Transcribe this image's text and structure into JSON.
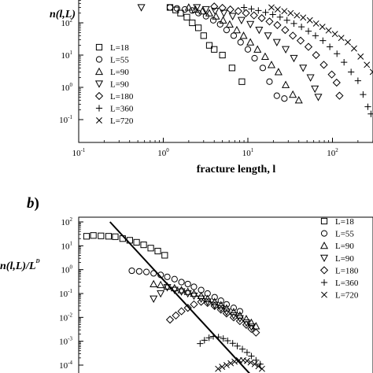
{
  "chart_data": [
    {
      "type": "scatter",
      "title": "",
      "ylabel": "n(l,L)",
      "xlabel": "fracture length, l",
      "xscale": "log",
      "yscale": "log",
      "xlim": [
        0.1,
        500
      ],
      "ylim": [
        0.03,
        600
      ],
      "x_ticks": [
        "10",
        "10",
        "10",
        "10"
      ],
      "x_tick_exponents": [
        "-1",
        "0",
        "1",
        "2"
      ],
      "y_ticks": [
        "10",
        "10",
        "10",
        "10"
      ],
      "y_tick_exponents": [
        "-1",
        "0",
        "1",
        "2"
      ],
      "legend_position": "left",
      "series": [
        {
          "name": "L=18",
          "marker": "square",
          "points": [
            [
              1.2,
              300
            ],
            [
              1.4,
              250
            ],
            [
              1.6,
              200
            ],
            [
              1.9,
              150
            ],
            [
              2.2,
              100
            ],
            [
              2.6,
              70
            ],
            [
              3.0,
              40
            ],
            [
              3.5,
              20
            ],
            [
              4.0,
              15
            ],
            [
              5.0,
              10
            ],
            [
              6.5,
              4
            ],
            [
              8.5,
              1.5
            ]
          ]
        },
        {
          "name": "L=55",
          "marker": "circle",
          "points": [
            [
              1.2,
              300
            ],
            [
              1.45,
              280
            ],
            [
              1.8,
              260
            ],
            [
              2.2,
              240
            ],
            [
              2.6,
              200
            ],
            [
              3.2,
              160
            ],
            [
              3.9,
              120
            ],
            [
              4.7,
              90
            ],
            [
              5.6,
              60
            ],
            [
              6.8,
              40
            ],
            [
              8.2,
              25
            ],
            [
              10,
              15
            ],
            [
              12,
              8
            ],
            [
              15,
              4
            ],
            [
              18,
              1.5
            ],
            [
              22,
              0.55
            ],
            [
              27,
              0.45
            ]
          ]
        },
        {
          "name": "L=90",
          "marker": "triangle-up",
          "points": [
            [
              2.0,
              300
            ],
            [
              2.4,
              260
            ],
            [
              2.9,
              230
            ],
            [
              3.5,
              200
            ],
            [
              4.2,
              160
            ],
            [
              5.1,
              120
            ],
            [
              6.1,
              90
            ],
            [
              7.4,
              60
            ],
            [
              8.9,
              40
            ],
            [
              10.7,
              25
            ],
            [
              13,
              15
            ],
            [
              16,
              9
            ],
            [
              19,
              5
            ],
            [
              23,
              3
            ],
            [
              28,
              1.2
            ],
            [
              34,
              0.6
            ],
            [
              40,
              0.4
            ]
          ]
        },
        {
          "name": "L=90",
          "marker": "triangle-down",
          "points": [
            [
              0.55,
              300
            ],
            [
              2.5,
              300
            ],
            [
              3.2,
              260
            ],
            [
              4.1,
              230
            ],
            [
              5.2,
              200
            ],
            [
              6.6,
              160
            ],
            [
              8.4,
              120
            ],
            [
              10.7,
              90
            ],
            [
              13.6,
              60
            ],
            [
              17.3,
              40
            ],
            [
              22,
              25
            ],
            [
              28,
              15
            ],
            [
              35,
              8
            ],
            [
              45,
              4
            ],
            [
              55,
              2
            ],
            [
              62,
              0.9
            ],
            [
              68,
              0.5
            ]
          ]
        },
        {
          "name": "L=180",
          "marker": "diamond",
          "points": [
            [
              4.0,
              320
            ],
            [
              5.0,
              290
            ],
            [
              6.2,
              260
            ],
            [
              7.7,
              230
            ],
            [
              9.5,
              200
            ],
            [
              11.8,
              170
            ],
            [
              14.6,
              140
            ],
            [
              18,
              110
            ],
            [
              22.3,
              85
            ],
            [
              27.6,
              60
            ],
            [
              34,
              40
            ],
            [
              42,
              28
            ],
            [
              52,
              18
            ],
            [
              64,
              10
            ],
            [
              79,
              5
            ],
            [
              98,
              2.5
            ],
            [
              112,
              1.4
            ],
            [
              121,
              0.55
            ]
          ]
        },
        {
          "name": "L=360",
          "marker": "plus",
          "points": [
            [
              9.0,
              300
            ],
            [
              11,
              270
            ],
            [
              13.3,
              240
            ],
            [
              16.2,
              210
            ],
            [
              19.7,
              180
            ],
            [
              24,
              150
            ],
            [
              29,
              120
            ],
            [
              35,
              95
            ],
            [
              43,
              75
            ],
            [
              52,
              55
            ],
            [
              63,
              40
            ],
            [
              77,
              28
            ],
            [
              93,
              18
            ],
            [
              113,
              11
            ],
            [
              137,
              6
            ],
            [
              166,
              3
            ],
            [
              200,
              1.6
            ],
            [
              230,
              0.6
            ],
            [
              262,
              0.25
            ],
            [
              285,
              0.15
            ]
          ]
        },
        {
          "name": "L=720",
          "marker": "x",
          "points": [
            [
              19,
              300
            ],
            [
              22.5,
              260
            ],
            [
              27,
              230
            ],
            [
              32,
              200
            ],
            [
              38,
              170
            ],
            [
              45,
              145
            ],
            [
              54,
              120
            ],
            [
              64,
              95
            ],
            [
              76,
              75
            ],
            [
              90,
              58
            ],
            [
              107,
              45
            ],
            [
              127,
              34
            ],
            [
              152,
              25
            ],
            [
              180,
              16
            ],
            [
              215,
              9
            ],
            [
              255,
              5
            ],
            [
              300,
              3
            ],
            [
              340,
              1.5
            ],
            [
              395,
              1.0
            ],
            [
              431,
              0.45
            ]
          ]
        }
      ]
    },
    {
      "type": "scatter",
      "title": "",
      "panel_label": "b",
      "panel_paren": ")",
      "ylabel": "n(l,L)/L",
      "ylabel_superscript": "D",
      "xscale": "log",
      "yscale": "log",
      "xlim": [
        0.04,
        1
      ],
      "ylim": [
        5e-05,
        150
      ],
      "y_ticks": [
        "10",
        "10",
        "10",
        "10",
        "10",
        "10",
        "10"
      ],
      "y_tick_exponents": [
        "2",
        "1",
        "0",
        "-1",
        "-2",
        "-3",
        "-4"
      ],
      "legend_position": "right",
      "reference_line": [
        [
          0.0646,
          100
        ],
        [
          1.0,
          1.08e-05
        ]
      ],
      "series": [
        {
          "name": "L=18",
          "marker": "square",
          "points": [
            [
              0.0425,
              25
            ],
            [
              0.048,
              27
            ],
            [
              0.055,
              26
            ],
            [
              0.063,
              25
            ],
            [
              0.071,
              24
            ],
            [
              0.081,
              20
            ],
            [
              0.092,
              17
            ],
            [
              0.104,
              14
            ],
            [
              0.118,
              11
            ],
            [
              0.134,
              8
            ],
            [
              0.152,
              6
            ],
            [
              0.172,
              4
            ]
          ]
        },
        {
          "name": "L=55",
          "marker": "circle",
          "points": [
            [
              0.0955,
              0.9
            ],
            [
              0.109,
              0.85
            ],
            [
              0.124,
              0.8
            ],
            [
              0.141,
              0.7
            ],
            [
              0.16,
              0.6
            ],
            [
              0.18,
              0.5
            ],
            [
              0.205,
              0.4
            ],
            [
              0.232,
              0.3
            ],
            [
              0.26,
              0.25
            ],
            [
              0.29,
              0.19
            ],
            [
              0.33,
              0.14
            ],
            [
              0.37,
              0.1
            ],
            [
              0.42,
              0.07
            ],
            [
              0.47,
              0.05
            ],
            [
              0.52,
              0.035
            ],
            [
              0.59,
              0.025
            ],
            [
              0.66,
              0.018
            ]
          ]
        },
        {
          "name": "L=90",
          "marker": "triangle-up",
          "points": [
            [
              0.141,
              0.25
            ],
            [
              0.16,
              0.23
            ],
            [
              0.18,
              0.2
            ],
            [
              0.205,
              0.17
            ],
            [
              0.232,
              0.14
            ],
            [
              0.26,
              0.12
            ],
            [
              0.29,
              0.1
            ],
            [
              0.33,
              0.08
            ],
            [
              0.37,
              0.06
            ],
            [
              0.42,
              0.045
            ],
            [
              0.47,
              0.033
            ],
            [
              0.52,
              0.024
            ],
            [
              0.59,
              0.017
            ],
            [
              0.66,
              0.0121
            ],
            [
              0.74,
              0.0086
            ],
            [
              0.81,
              0.006
            ],
            [
              0.88,
              0.0043
            ]
          ]
        },
        {
          "name": "L=90",
          "marker": "triangle-down",
          "points": [
            [
              0.141,
              0.06
            ],
            [
              0.16,
              0.1
            ],
            [
              0.18,
              0.18
            ],
            [
              0.205,
              0.14
            ],
            [
              0.232,
              0.12
            ],
            [
              0.26,
              0.1
            ],
            [
              0.29,
              0.08
            ],
            [
              0.33,
              0.06
            ],
            [
              0.37,
              0.045
            ],
            [
              0.42,
              0.033
            ],
            [
              0.47,
              0.024
            ],
            [
              0.52,
              0.017
            ],
            [
              0.59,
              0.012
            ],
            [
              0.66,
              0.009
            ],
            [
              0.74,
              0.006
            ],
            [
              0.81,
              0.004
            ]
          ]
        },
        {
          "name": "L=180",
          "marker": "diamond",
          "points": [
            [
              0.189,
              0.008
            ],
            [
              0.21,
              0.012
            ],
            [
              0.232,
              0.018
            ],
            [
              0.26,
              0.025
            ],
            [
              0.29,
              0.035
            ],
            [
              0.33,
              0.045
            ],
            [
              0.37,
              0.04
            ],
            [
              0.42,
              0.03
            ],
            [
              0.47,
              0.021
            ],
            [
              0.52,
              0.0146
            ],
            [
              0.59,
              0.01
            ],
            [
              0.66,
              0.007
            ],
            [
              0.74,
              0.0049
            ],
            [
              0.81,
              0.0033
            ],
            [
              0.88,
              0.0023
            ]
          ]
        },
        {
          "name": "L=360",
          "marker": "plus",
          "points": [
            [
              0.324,
              0.0008
            ],
            [
              0.35,
              0.0011
            ],
            [
              0.38,
              0.0014
            ],
            [
              0.41,
              0.0016
            ],
            [
              0.45,
              0.0015
            ],
            [
              0.49,
              0.0013
            ],
            [
              0.53,
              0.00105
            ],
            [
              0.58,
              0.00082
            ],
            [
              0.63,
              0.00063
            ],
            [
              0.69,
              0.00047
            ],
            [
              0.75,
              0.00034
            ],
            [
              0.81,
              0.00024
            ],
            [
              0.88,
              0.00016
            ],
            [
              0.95,
              0.00011
            ]
          ]
        },
        {
          "name": "L=720",
          "marker": "x",
          "points": [
            [
              0.447,
              7e-05
            ],
            [
              0.48,
              8.5e-05
            ],
            [
              0.52,
              0.0001
            ],
            [
              0.56,
              0.00012
            ],
            [
              0.6,
              0.00014
            ],
            [
              0.65,
              0.00016
            ],
            [
              0.7,
              0.00016
            ],
            [
              0.75,
              0.00015
            ],
            [
              0.8,
              0.00013
            ],
            [
              0.86,
              0.00011
            ],
            [
              0.92,
              9e-05
            ],
            [
              0.98,
              7e-05
            ]
          ]
        }
      ]
    }
  ]
}
